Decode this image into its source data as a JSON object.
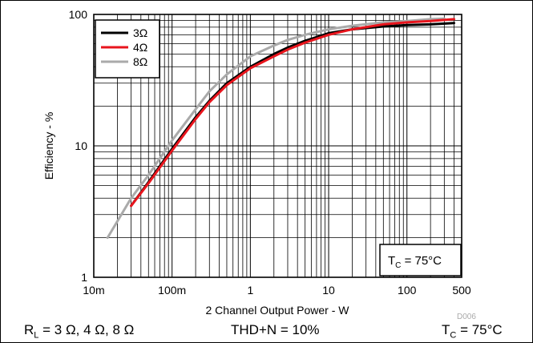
{
  "chart_data": {
    "type": "line",
    "xlabel": "2 Channel Output Power - W",
    "ylabel": "Efficiency - %",
    "x_scale": "log",
    "y_scale": "log",
    "xlim": [
      0.01,
      500
    ],
    "ylim": [
      1,
      100
    ],
    "x_ticks": [
      0.01,
      0.1,
      1,
      10,
      100,
      500
    ],
    "x_tick_labels": [
      "10m",
      "100m",
      "1",
      "10",
      "100",
      "500"
    ],
    "y_ticks": [
      1,
      10,
      100
    ],
    "y_tick_labels": [
      "1",
      "10",
      "100"
    ],
    "grid": true,
    "legend_position": "top-left",
    "series": [
      {
        "name": "3Ω",
        "color": "#000000",
        "x": [
          0.03,
          0.05,
          0.1,
          0.2,
          0.3,
          0.5,
          1,
          2,
          3,
          5,
          10,
          20,
          50,
          100,
          200,
          400
        ],
        "y": [
          3.5,
          5.3,
          9.5,
          16.5,
          22,
          30,
          40,
          50,
          56,
          63,
          72,
          77,
          81,
          83,
          84,
          86
        ]
      },
      {
        "name": "4Ω",
        "color": "#e8141c",
        "x": [
          0.03,
          0.05,
          0.1,
          0.2,
          0.3,
          0.5,
          1,
          2,
          3,
          5,
          10,
          20,
          50,
          100,
          200,
          400
        ],
        "y": [
          3.5,
          5.2,
          9.2,
          16,
          21.5,
          29,
          39,
          48,
          54,
          61,
          70,
          77,
          84,
          87,
          89,
          92
        ]
      },
      {
        "name": "8Ω",
        "color": "#aaaaaa",
        "x": [
          0.015,
          0.03,
          0.05,
          0.1,
          0.2,
          0.3,
          0.5,
          1,
          2,
          3,
          5,
          10,
          20,
          50,
          100,
          200,
          300
        ],
        "y": [
          2,
          4,
          6,
          11,
          19,
          26,
          35,
          48,
          58,
          64,
          70,
          77,
          82,
          87,
          89,
          92,
          93
        ]
      }
    ],
    "annotations": {
      "box_label": "T",
      "box_sub": "C",
      "box_value": " = 75°C",
      "figure_id": "D006"
    }
  },
  "footer": {
    "rl_main": "R",
    "rl_sub": "L",
    "rl_value": " = 3 Ω, 4 Ω, 8 Ω",
    "thd": "THD+N = 10%",
    "tc_main": "T",
    "tc_sub": "C",
    "tc_value": " = 75°C"
  }
}
